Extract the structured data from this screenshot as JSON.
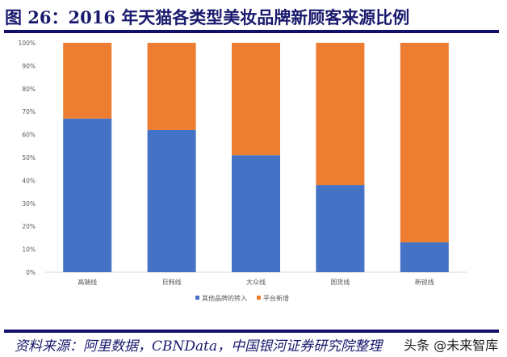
{
  "title": "图 26：2016 年天猫各类型美妆品牌新顾客来源比例",
  "source": "资料来源：阿里数据，CBNData，中国银河证券研究院整理",
  "watermark": "头条 @未来智库",
  "chart_data": {
    "type": "bar",
    "stacked": true,
    "categories": [
      "高端线",
      "日韩线",
      "大众线",
      "国货线",
      "新锐线"
    ],
    "series": [
      {
        "name": "其他品牌的转入",
        "color": "#4472c4",
        "values": [
          67,
          62,
          51,
          38,
          13
        ]
      },
      {
        "name": "平台新增",
        "color": "#ed7d31",
        "values": [
          33,
          38,
          49,
          62,
          87
        ]
      }
    ],
    "yticks": [
      "0%",
      "10%",
      "20%",
      "30%",
      "40%",
      "50%",
      "60%",
      "70%",
      "80%",
      "90%",
      "100%"
    ],
    "ylim": [
      0,
      100
    ],
    "grid": false,
    "legend": "bottom"
  }
}
